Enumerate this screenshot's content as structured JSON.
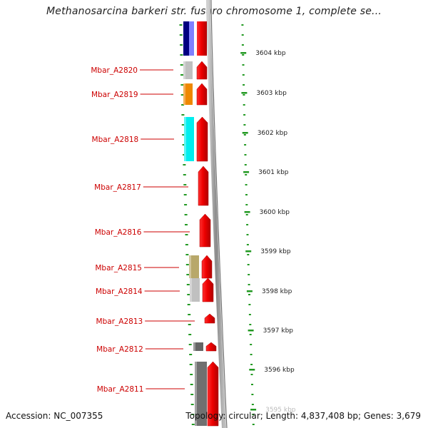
{
  "title": "Methanosarcina barkeri str. fusaro chromosome 1, complete se...",
  "footer": {
    "accession": "Accession: NC_007355",
    "summary": "Topology: circular; Length: 4,837,408 bp; Genes: 3,679"
  },
  "scale_labels": [
    "3604 kbp",
    "3603 kbp",
    "3602 kbp",
    "3601 kbp",
    "3600 kbp",
    "3599 kbp",
    "3598 kbp",
    "3597 kbp",
    "3596 kbp",
    "3595 kbp"
  ],
  "genes": [
    {
      "name": "Mbar_A2820",
      "has_partner": true,
      "partner_color": "#c0c0c0"
    },
    {
      "name": "Mbar_A2819",
      "has_partner": true,
      "partner_color": "#ee8800"
    },
    {
      "name": "Mbar_A2818",
      "has_partner": true,
      "partner_color": "#00eeee"
    },
    {
      "name": "Mbar_A2817",
      "has_partner": false,
      "partner_color": ""
    },
    {
      "name": "Mbar_A2816",
      "has_partner": false,
      "partner_color": ""
    },
    {
      "name": "Mbar_A2815",
      "has_partner": true,
      "partner_color": "#b8a86a"
    },
    {
      "name": "Mbar_A2814",
      "has_partner": true,
      "partner_color": "#c0c0c0"
    },
    {
      "name": "Mbar_A2813",
      "has_partner": false,
      "partner_color": ""
    },
    {
      "name": "Mbar_A2812",
      "has_partner": true,
      "partner_color": "#666666"
    },
    {
      "name": "Mbar_A2811",
      "has_partner": true,
      "partner_color": "#707070"
    }
  ],
  "colors": {
    "gene_label": "#cc0000",
    "gene_arrow": "#ee0000",
    "tick": "#229922",
    "backbone": "#999999",
    "top_block_navy": "#000080",
    "top_block_violet": "#8080ff"
  }
}
